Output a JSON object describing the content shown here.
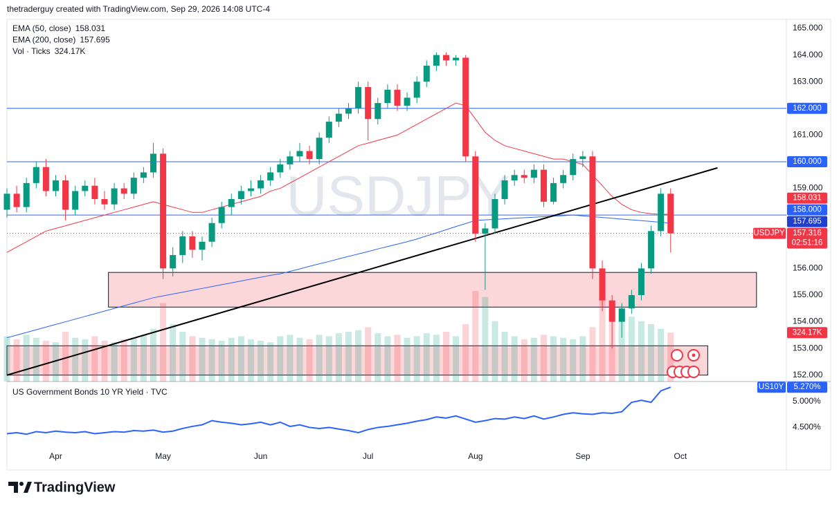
{
  "header": "thetraderguy created with TradingView.com, Sep 29, 2026 14:08 UTC-4",
  "footer": "TradingView",
  "chart_data": [
    {
      "type": "candlestick",
      "symbol": "USDJPY",
      "xlim": [
        0,
        79.79
      ],
      "xticks": [
        {
          "value": 5,
          "label": "Apr"
        },
        {
          "value": 16,
          "label": "May"
        },
        {
          "value": 26,
          "label": "Jun"
        },
        {
          "value": 37,
          "label": "Jul"
        },
        {
          "value": 48,
          "label": "Aug"
        },
        {
          "value": 59,
          "label": "Sep"
        },
        {
          "value": 69,
          "label": "Oct"
        }
      ],
      "ylim": [
        151.76,
        165.337
      ],
      "yticks": [
        {
          "value": 165,
          "label": "165.000"
        },
        {
          "value": 164,
          "label": "164.000"
        },
        {
          "value": 163,
          "label": "163.000"
        },
        {
          "value": 161,
          "label": "161.000"
        },
        {
          "value": 159,
          "label": "159.000"
        },
        {
          "value": 156,
          "label": "156.000"
        },
        {
          "value": 155,
          "label": "155.000"
        },
        {
          "value": 154,
          "label": "154.000"
        },
        {
          "value": 153,
          "label": "153.000"
        },
        {
          "value": 152,
          "label": "152.000"
        }
      ],
      "up_color": "#089981",
      "down_color": "#f23645",
      "open": [
        158.2,
        158.8,
        158.3,
        159.2,
        159.8,
        158.9,
        159.3,
        158.2,
        158.9,
        159.1,
        158.6,
        158.4,
        159.0,
        158.8,
        159.4,
        159.6,
        160.3,
        156.0,
        156.5,
        157.2,
        156.7,
        157.0,
        157.7,
        158.3,
        158.6,
        158.9,
        159.0,
        159.3,
        159.6,
        159.9,
        160.2,
        160.4,
        160.1,
        160.9,
        161.5,
        161.8,
        162.0,
        162.8,
        161.6,
        162.2,
        162.7,
        162.1,
        162.4,
        163.0,
        163.6,
        164.0,
        163.8,
        163.9,
        160.2,
        157.3,
        157.5,
        158.6,
        159.3,
        159.5,
        159.4,
        159.7,
        158.5,
        159.2,
        159.5,
        160.1,
        160.2,
        156.0,
        154.8,
        154.0,
        154.5,
        155.0,
        156.0,
        157.4,
        158.8
      ],
      "high": [
        159.0,
        159.1,
        159.4,
        160.0,
        160.1,
        159.5,
        159.5,
        159.1,
        159.3,
        159.4,
        158.9,
        159.2,
        159.2,
        159.6,
        159.8,
        160.7,
        160.5,
        156.8,
        157.4,
        157.4,
        157.2,
        157.9,
        158.5,
        158.8,
        159.1,
        159.3,
        159.5,
        159.8,
        160.1,
        160.4,
        160.7,
        160.6,
        161.1,
        161.7,
        162.0,
        162.2,
        163.0,
        163.0,
        162.4,
        162.9,
        162.9,
        162.6,
        163.2,
        163.8,
        164.1,
        164.1,
        164.0,
        164.0,
        160.4,
        157.7,
        158.8,
        159.5,
        159.7,
        159.7,
        159.9,
        159.9,
        159.4,
        159.7,
        160.3,
        160.4,
        160.4,
        156.3,
        155.0,
        154.7,
        155.2,
        156.2,
        157.6,
        159.0,
        159.0
      ],
      "low": [
        157.9,
        158.1,
        158.1,
        159.0,
        158.7,
        158.7,
        157.8,
        158.0,
        158.7,
        158.4,
        158.2,
        158.2,
        158.6,
        158.6,
        159.2,
        159.4,
        155.6,
        155.7,
        156.2,
        156.4,
        156.3,
        156.8,
        157.5,
        158.0,
        158.4,
        158.7,
        158.8,
        159.1,
        159.4,
        159.7,
        160.0,
        159.9,
        159.9,
        160.7,
        161.3,
        161.6,
        161.8,
        160.8,
        161.4,
        162.0,
        161.9,
        161.9,
        162.2,
        162.8,
        163.4,
        163.6,
        163.6,
        160.0,
        157.0,
        155.2,
        157.3,
        158.4,
        159.1,
        159.2,
        159.2,
        158.3,
        158.4,
        159.0,
        159.3,
        159.8,
        155.6,
        154.4,
        153.0,
        153.4,
        154.3,
        154.8,
        155.8,
        157.2,
        156.6
      ],
      "close": [
        158.8,
        158.3,
        159.2,
        159.8,
        158.9,
        159.3,
        158.2,
        158.9,
        159.1,
        158.6,
        158.4,
        159.0,
        158.8,
        159.4,
        159.6,
        160.3,
        156.0,
        156.5,
        157.2,
        156.7,
        157.0,
        157.7,
        158.3,
        158.6,
        158.9,
        159.0,
        159.3,
        159.6,
        159.9,
        160.2,
        160.4,
        160.1,
        160.9,
        161.5,
        161.8,
        162.0,
        162.8,
        161.6,
        162.2,
        162.7,
        162.1,
        162.4,
        163.0,
        163.6,
        164.0,
        163.8,
        163.9,
        160.2,
        157.3,
        157.5,
        158.6,
        159.3,
        159.5,
        159.4,
        159.7,
        158.5,
        159.2,
        159.5,
        160.1,
        160.2,
        156.0,
        154.8,
        154.0,
        154.5,
        155.0,
        156.0,
        157.4,
        158.8,
        157.316
      ],
      "countdown": "02:51:16",
      "series": [
        {
          "name": "EMA (50, close)",
          "color": "#f23645",
          "values": [
            156.6,
            156.8,
            157.0,
            157.2,
            157.4,
            157.5,
            157.6,
            157.7,
            157.8,
            157.9,
            158.0,
            158.1,
            158.2,
            158.3,
            158.4,
            158.5,
            158.4,
            158.3,
            158.2,
            158.1,
            158.1,
            158.2,
            158.3,
            158.4,
            158.5,
            158.6,
            158.7,
            158.9,
            159.0,
            159.2,
            159.4,
            159.6,
            159.8,
            160.0,
            160.2,
            160.4,
            160.6,
            160.7,
            160.8,
            160.9,
            161.0,
            161.2,
            161.4,
            161.6,
            161.8,
            162.0,
            162.2,
            162.1,
            161.6,
            161.1,
            160.8,
            160.6,
            160.5,
            160.4,
            160.3,
            160.2,
            160.1,
            160.1,
            160.0,
            159.9,
            159.5,
            159.1,
            158.7,
            158.4,
            158.2,
            158.1,
            158.05,
            158.03,
            158.031
          ]
        },
        {
          "name": "EMA (200, close)",
          "color": "#2962ff",
          "values": [
            153.4,
            153.5,
            153.6,
            153.7,
            153.8,
            153.9,
            154.0,
            154.1,
            154.2,
            154.3,
            154.4,
            154.5,
            154.6,
            154.7,
            154.8,
            154.9,
            154.97,
            155.04,
            155.11,
            155.18,
            155.25,
            155.32,
            155.39,
            155.46,
            155.53,
            155.6,
            155.67,
            155.74,
            155.8,
            155.89,
            155.98,
            156.08,
            156.17,
            156.26,
            156.36,
            156.45,
            156.54,
            156.63,
            156.73,
            156.82,
            156.91,
            157.0,
            157.1,
            157.22,
            157.33,
            157.45,
            157.57,
            157.68,
            157.8,
            157.82,
            157.84,
            157.86,
            157.88,
            157.9,
            157.92,
            157.94,
            157.96,
            157.98,
            158.0,
            157.97,
            157.94,
            157.91,
            157.88,
            157.85,
            157.82,
            157.79,
            157.76,
            157.73,
            157.695
          ]
        }
      ],
      "volume": {
        "name": "Vol · Ticks",
        "ylim": [
          0,
          2400
        ],
        "last_label": "324.17K",
        "values": [
          300,
          280,
          310,
          290,
          270,
          260,
          330,
          290,
          280,
          300,
          270,
          260,
          280,
          290,
          310,
          350,
          520,
          380,
          330,
          300,
          290,
          280,
          270,
          290,
          300,
          280,
          270,
          260,
          300,
          310,
          290,
          280,
          310,
          300,
          320,
          330,
          340,
          360,
          320,
          300,
          310,
          290,
          300,
          320,
          310,
          330,
          300,
          380,
          600,
          560,
          400,
          330,
          300,
          280,
          290,
          310,
          300,
          290,
          280,
          300,
          360,
          560,
          520,
          480,
          430,
          400,
          380,
          350,
          324.17
        ]
      },
      "levels": [
        {
          "value": 162,
          "label": "162.000"
        },
        {
          "value": 160,
          "label": "160.000"
        },
        {
          "value": 158,
          "label": "158.000"
        }
      ],
      "level_color": "#2962ff",
      "trendline": {
        "x": [
          0,
          72.8
        ],
        "y": [
          152.0,
          159.77
        ],
        "color": "#000000"
      },
      "zones": [
        {
          "x": [
            10.4,
            76.8
          ],
          "y": [
            154.55,
            155.85
          ]
        },
        {
          "x": [
            0,
            71.8
          ],
          "y": [
            152.0,
            153.1
          ]
        }
      ]
    },
    {
      "type": "line",
      "title": "US Government Bonds 10 YR Yield · TVC",
      "ylim": [
        4.149,
        5.365
      ],
      "yticks": [
        {
          "value": 5.0,
          "label": "5.000%"
        },
        {
          "value": 4.5,
          "label": "4.500%"
        }
      ],
      "series": [
        {
          "name": "US10Y",
          "color": "#2962ff",
          "last_label": "5.270%",
          "values": [
            4.38,
            4.4,
            4.37,
            4.42,
            4.4,
            4.43,
            4.41,
            4.4,
            4.42,
            4.38,
            4.4,
            4.42,
            4.41,
            4.44,
            4.43,
            4.45,
            4.41,
            4.43,
            4.48,
            4.52,
            4.55,
            4.63,
            4.6,
            4.58,
            4.55,
            4.57,
            4.6,
            4.55,
            4.6,
            4.52,
            4.55,
            4.5,
            4.48,
            4.5,
            4.47,
            4.44,
            4.4,
            4.46,
            4.5,
            4.52,
            4.55,
            4.58,
            4.62,
            4.65,
            4.7,
            4.68,
            4.72,
            4.66,
            4.6,
            4.63,
            4.67,
            4.66,
            4.7,
            4.67,
            4.72,
            4.66,
            4.7,
            4.75,
            4.78,
            4.76,
            4.75,
            4.78,
            4.77,
            4.8,
            4.98,
            5.02,
            4.98,
            5.2,
            5.27
          ]
        }
      ]
    }
  ]
}
